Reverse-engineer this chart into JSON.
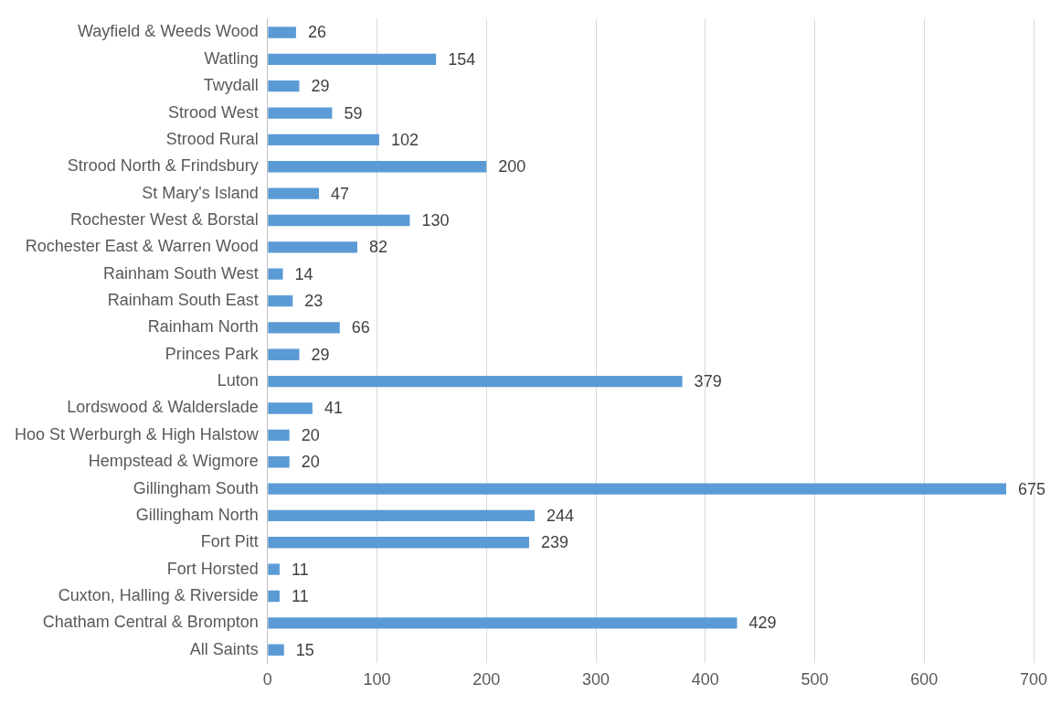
{
  "chart_data": {
    "type": "bar",
    "orientation": "horizontal",
    "categories": [
      "Wayfield & Weeds Wood",
      "Watling",
      "Twydall",
      "Strood West",
      "Strood Rural",
      "Strood North & Frindsbury",
      "St Mary's Island",
      "Rochester West & Borstal",
      "Rochester East & Warren Wood",
      "Rainham South West",
      "Rainham South East",
      "Rainham North",
      "Princes Park",
      "Luton",
      "Lordswood & Walderslade",
      "Hoo St Werburgh & High Halstow",
      "Hempstead & Wigmore",
      "Gillingham South",
      "Gillingham North",
      "Fort Pitt",
      "Fort Horsted",
      "Cuxton, Halling & Riverside",
      "Chatham Central & Brompton",
      "All Saints"
    ],
    "values": [
      26,
      154,
      29,
      59,
      102,
      200,
      47,
      130,
      82,
      14,
      23,
      66,
      29,
      379,
      41,
      20,
      20,
      675,
      244,
      239,
      11,
      11,
      429,
      15
    ],
    "color": "#5b9bd5",
    "xlim": [
      0,
      700
    ],
    "xticks": [
      0,
      100,
      200,
      300,
      400,
      500,
      600,
      700
    ],
    "grid": "x",
    "data_labels": true,
    "legend": false
  }
}
